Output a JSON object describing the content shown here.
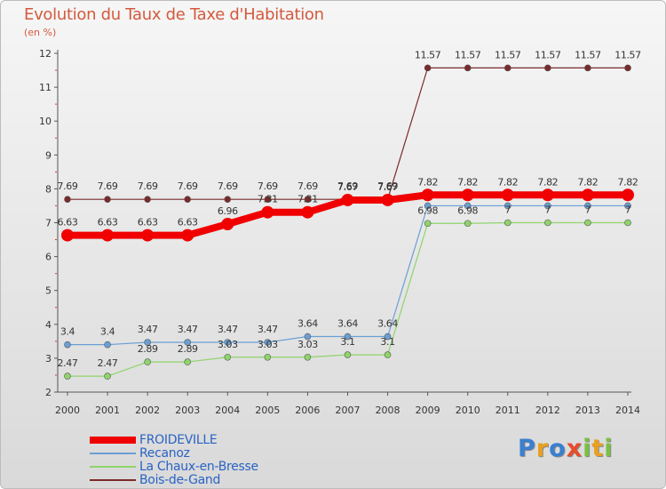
{
  "header": {
    "title": "Evolution du Taux de Taxe d'Habitation",
    "unit": "(en %)"
  },
  "logo": {
    "letters": [
      {
        "ch": "P",
        "color": "#3a7fd0"
      },
      {
        "ch": "r",
        "color": "#e8a020"
      },
      {
        "ch": "o",
        "color": "#3a7fd0"
      },
      {
        "ch": "x",
        "color": "#e84c2a"
      },
      {
        "ch": "i",
        "color": "#7ac143"
      },
      {
        "ch": "t",
        "color": "#e8a020"
      },
      {
        "ch": "i",
        "color": "#7ac143"
      }
    ]
  },
  "chart_data": {
    "type": "line",
    "title": "Evolution du Taux de Taxe d'Habitation",
    "ylabel": "(en %)",
    "x": [
      "2000",
      "2001",
      "2002",
      "2003",
      "2004",
      "2005",
      "2006",
      "2007",
      "2008",
      "2009",
      "2010",
      "2011",
      "2012",
      "2013",
      "2014"
    ],
    "ylim": [
      2,
      12
    ],
    "yticks": [
      "2",
      "3",
      "4",
      "5",
      "6",
      "7",
      "8",
      "9",
      "10",
      "11",
      "12"
    ],
    "grid": false,
    "legend": "bottom-left",
    "series": [
      {
        "name": "Bois-de-Gand",
        "color": "#7b2a2a",
        "width": 1.2,
        "marker": 3.5,
        "values": [
          7.69,
          7.69,
          7.69,
          7.69,
          7.69,
          7.69,
          7.69,
          7.69,
          7.69,
          11.57,
          11.57,
          11.57,
          11.57,
          11.57,
          11.57
        ],
        "labels": [
          "7.69",
          "7.69",
          "7.69",
          "7.69",
          "7.69",
          "7.69",
          "7.69",
          "7.69",
          "7.69",
          "11.57",
          "11.57",
          "11.57",
          "11.57",
          "11.57",
          "11.57"
        ]
      },
      {
        "name": "Recanoz",
        "color": "#6a9fd4",
        "width": 1.2,
        "marker": 3.5,
        "values": [
          3.4,
          3.4,
          3.47,
          3.47,
          3.47,
          3.47,
          3.64,
          3.64,
          3.64,
          7.5,
          7.5,
          7.5,
          7.5,
          7.5,
          7.5
        ],
        "labels": [
          "3.4",
          "3.4",
          "3.47",
          "3.47",
          "3.47",
          "3.47",
          "3.64",
          "3.64",
          "3.64",
          "",
          "",
          "",
          "",
          "",
          ""
        ]
      },
      {
        "name": "La Chaux-en-Bresse",
        "color": "#8fd46a",
        "width": 1.2,
        "marker": 3.5,
        "values": [
          2.47,
          2.47,
          2.89,
          2.89,
          3.03,
          3.03,
          3.03,
          3.1,
          3.1,
          6.98,
          6.98,
          7,
          7,
          7,
          7
        ],
        "labels": [
          "2.47",
          "2.47",
          "2.89",
          "2.89",
          "3.03",
          "3.03",
          "3.03",
          "3.1",
          "3.1",
          "6.98",
          "6.98",
          "7",
          "7",
          "7",
          "7"
        ]
      },
      {
        "name": "FROIDEVILLE",
        "color": "#f00000",
        "width": 8,
        "marker": 7,
        "values": [
          6.63,
          6.63,
          6.63,
          6.63,
          6.96,
          7.31,
          7.31,
          7.67,
          7.67,
          7.82,
          7.82,
          7.82,
          7.82,
          7.82,
          7.82
        ],
        "labels": [
          "6.63",
          "6.63",
          "6.63",
          "6.63",
          "6.96",
          "7.31",
          "7.31",
          "7.67",
          "7.67",
          "7.82",
          "7.82",
          "7.82",
          "7.82",
          "7.82",
          "7.82"
        ]
      }
    ]
  },
  "legend_items": [
    {
      "label": "FROIDEVILLE",
      "color": "#f00000",
      "thickness": 8
    },
    {
      "label": "Recanoz",
      "color": "#6a9fd4",
      "thickness": 2
    },
    {
      "label": "La Chaux-en-Bresse",
      "color": "#8fd46a",
      "thickness": 2
    },
    {
      "label": "Bois-de-Gand",
      "color": "#7b2a2a",
      "thickness": 2
    }
  ]
}
